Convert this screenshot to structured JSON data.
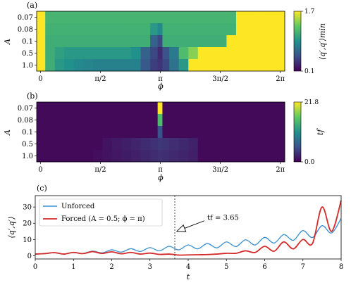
{
  "chart_data": [
    {
      "type": "heatmap",
      "panel_label": "(a)",
      "xlabel": "ϕ",
      "ylabel": "A",
      "x_tick_labels": [
        "0",
        "π/2",
        "π",
        "3π/2",
        "2π"
      ],
      "x_tick_values": [
        0,
        1.5708,
        3.1416,
        4.7124,
        6.2832
      ],
      "xlim": [
        -0.1,
        6.4
      ],
      "y_tick_labels": [
        "0.07",
        "0.08",
        "0.1",
        "0.5",
        "1.0"
      ],
      "colorbar": {
        "label": "⟨q′,q′⟩min",
        "min": 0.1,
        "max": 1.7,
        "min_label": "0.1",
        "max_label": "1.7",
        "colormap": "viridis"
      },
      "phi_columns": [
        0,
        0.25,
        0.5,
        0.75,
        1.0,
        1.25,
        1.5,
        1.75,
        2.0,
        2.25,
        2.5,
        2.75,
        3.0,
        3.14,
        3.25,
        3.5,
        3.75,
        4.0,
        4.25,
        4.5,
        4.75,
        5.0,
        5.25,
        5.5,
        5.75,
        6.0,
        6.28
      ],
      "rows": [
        {
          "A": "0.07",
          "values": [
            1.7,
            1.15,
            1.15,
            1.15,
            1.15,
            1.15,
            1.15,
            1.15,
            1.15,
            1.15,
            1.15,
            1.15,
            1.15,
            1.15,
            1.15,
            1.15,
            1.15,
            1.15,
            1.15,
            1.15,
            1.15,
            1.15,
            1.7,
            1.7,
            1.7,
            1.7,
            1.7
          ]
        },
        {
          "A": "0.08",
          "values": [
            1.7,
            1.13,
            1.13,
            1.13,
            1.13,
            1.13,
            1.13,
            1.13,
            1.13,
            1.13,
            1.13,
            1.13,
            0.95,
            0.85,
            1.13,
            1.13,
            1.13,
            1.13,
            1.13,
            1.13,
            1.13,
            1.13,
            1.7,
            1.7,
            1.7,
            1.7,
            1.7
          ]
        },
        {
          "A": "0.1",
          "values": [
            1.7,
            1.1,
            1.1,
            1.1,
            1.1,
            1.1,
            1.1,
            1.1,
            1.1,
            1.1,
            1.1,
            1.1,
            0.6,
            0.45,
            1.1,
            1.1,
            1.1,
            1.1,
            1.1,
            1.1,
            1.1,
            1.7,
            1.7,
            1.7,
            1.7,
            1.7,
            1.7
          ]
        },
        {
          "A": "0.5",
          "values": [
            1.7,
            1.1,
            1.0,
            0.95,
            0.95,
            0.95,
            0.95,
            0.95,
            0.95,
            0.95,
            0.9,
            0.6,
            0.45,
            0.3,
            0.5,
            0.75,
            1.2,
            1.4,
            1.7,
            1.7,
            1.7,
            1.7,
            1.7,
            1.7,
            1.7,
            1.7,
            1.7
          ]
        },
        {
          "A": "1.0",
          "values": [
            1.7,
            1.1,
            0.95,
            0.9,
            0.85,
            0.82,
            0.8,
            0.8,
            0.8,
            0.8,
            0.8,
            0.55,
            0.4,
            0.35,
            0.45,
            0.7,
            0.95,
            1.7,
            1.7,
            1.7,
            1.7,
            1.7,
            1.7,
            1.7,
            1.7,
            1.7,
            1.7
          ]
        }
      ]
    },
    {
      "type": "heatmap",
      "panel_label": "(b)",
      "xlabel": "ϕ",
      "ylabel": "A",
      "x_tick_labels": [
        "0",
        "π/2",
        "π",
        "3π/2",
        "2π"
      ],
      "x_tick_values": [
        0,
        1.5708,
        3.1416,
        4.7124,
        6.2832
      ],
      "xlim": [
        -0.1,
        6.4
      ],
      "y_tick_labels": [
        "0.07",
        "0.08",
        "0.1",
        "0.5",
        "1.0"
      ],
      "colorbar": {
        "label": "tf",
        "min": 0.0,
        "max": 21.8,
        "min_label": "0.0",
        "max_label": "21.8",
        "colormap": "viridis"
      },
      "phi_columns": [
        0,
        0.25,
        0.5,
        0.75,
        1.0,
        1.25,
        1.5,
        1.75,
        2.0,
        2.25,
        2.5,
        2.75,
        3.0,
        3.14,
        3.25,
        3.5,
        3.75,
        4.0,
        4.25,
        4.5,
        4.75,
        5.0,
        5.25,
        5.5,
        5.75,
        6.0,
        6.28
      ],
      "rows": [
        {
          "A": "0.07",
          "values": [
            0.6,
            0.6,
            0.6,
            0.6,
            0.6,
            0.6,
            0.6,
            0.6,
            0.6,
            0.6,
            0.6,
            0.6,
            0.6,
            21.8,
            0.6,
            0.6,
            0.6,
            0.6,
            0.6,
            0.6,
            0.6,
            0.6,
            0.6,
            0.6,
            0.6,
            0.6,
            0.6
          ]
        },
        {
          "A": "0.08",
          "values": [
            0.6,
            0.6,
            0.6,
            0.6,
            0.6,
            0.6,
            0.6,
            0.6,
            0.6,
            0.6,
            0.6,
            0.6,
            0.6,
            15.0,
            0.6,
            0.6,
            0.6,
            0.6,
            0.6,
            0.6,
            0.6,
            0.6,
            0.6,
            0.6,
            0.6,
            0.6,
            0.6
          ]
        },
        {
          "A": "0.1",
          "values": [
            0.6,
            0.6,
            0.6,
            0.6,
            0.6,
            0.6,
            0.6,
            0.6,
            0.6,
            0.6,
            0.6,
            0.6,
            0.6,
            5.5,
            0.6,
            0.6,
            0.6,
            0.6,
            0.6,
            0.6,
            0.6,
            0.6,
            0.6,
            0.6,
            0.6,
            0.6,
            0.6
          ]
        },
        {
          "A": "0.5",
          "values": [
            0.6,
            0.6,
            0.6,
            0.6,
            0.6,
            0.6,
            0.6,
            1.2,
            1.6,
            2.0,
            2.4,
            2.8,
            3.2,
            3.6,
            3.4,
            3.0,
            2.6,
            2.2,
            0.6,
            0.6,
            0.6,
            0.6,
            0.6,
            0.6,
            0.6,
            0.6,
            0.6
          ]
        },
        {
          "A": "1.0",
          "values": [
            0.6,
            0.6,
            0.6,
            0.6,
            0.6,
            0.6,
            0.9,
            1.2,
            1.5,
            1.8,
            2.1,
            2.5,
            2.9,
            3.2,
            3.0,
            2.7,
            2.4,
            2.1,
            0.6,
            0.6,
            0.6,
            0.6,
            0.6,
            0.6,
            0.6,
            0.6,
            0.6
          ]
        }
      ]
    },
    {
      "type": "line",
      "panel_label": "(c)",
      "xlabel": "t",
      "ylabel": "⟨q′,q′⟩",
      "xlim": [
        0,
        8
      ],
      "ylim": [
        -2,
        37
      ],
      "x_ticks": [
        0,
        1,
        2,
        3,
        4,
        5,
        6,
        7,
        8
      ],
      "y_ticks": [
        0,
        10,
        20,
        30
      ],
      "legend_position": "top-left",
      "annotation": {
        "text": "tf = 3.65",
        "t": 3.65,
        "arrow_to": [
          3.7,
          15
        ],
        "text_at": [
          4.5,
          22
        ]
      },
      "series": [
        {
          "name": "Unforced",
          "color": "#3a8fd0",
          "t": [
            0,
            0.25,
            0.5,
            0.75,
            1.0,
            1.25,
            1.5,
            1.75,
            2.0,
            2.25,
            2.5,
            2.75,
            3.0,
            3.25,
            3.5,
            3.75,
            4.0,
            4.25,
            4.5,
            4.75,
            5.0,
            5.25,
            5.5,
            5.75,
            6.0,
            6.25,
            6.5,
            6.75,
            7.0,
            7.25,
            7.5,
            7.75,
            8.0
          ],
          "values": [
            1.0,
            1.2,
            1.8,
            1.0,
            2.0,
            1.4,
            2.8,
            1.8,
            3.6,
            2.2,
            4.3,
            2.6,
            5.0,
            3.0,
            5.8,
            3.6,
            6.6,
            4.2,
            7.5,
            4.8,
            8.5,
            5.6,
            9.8,
            6.6,
            11.3,
            7.8,
            13.0,
            9.5,
            15.5,
            11.2,
            18.5,
            14.0,
            23.0
          ]
        },
        {
          "name": "Forced (A = 0.5; ϕ = π)",
          "color": "#d42a2a",
          "t": [
            0,
            0.25,
            0.5,
            0.75,
            1.0,
            1.25,
            1.5,
            1.75,
            2.0,
            2.25,
            2.5,
            2.75,
            3.0,
            3.25,
            3.5,
            3.75,
            4.0,
            4.25,
            4.5,
            4.75,
            5.0,
            5.25,
            5.5,
            5.75,
            6.0,
            6.25,
            6.5,
            6.75,
            7.0,
            7.25,
            7.5,
            7.75,
            8.0
          ],
          "values": [
            1.0,
            1.3,
            1.9,
            1.0,
            2.0,
            1.3,
            2.5,
            1.4,
            2.4,
            1.2,
            2.0,
            1.0,
            1.6,
            0.8,
            1.0,
            0.4,
            0.5,
            0.6,
            0.7,
            1.0,
            1.5,
            1.5,
            3.0,
            2.0,
            5.8,
            2.8,
            8.5,
            4.2,
            10.0,
            7.5,
            30.0,
            15.0,
            34.0
          ]
        }
      ]
    }
  ]
}
